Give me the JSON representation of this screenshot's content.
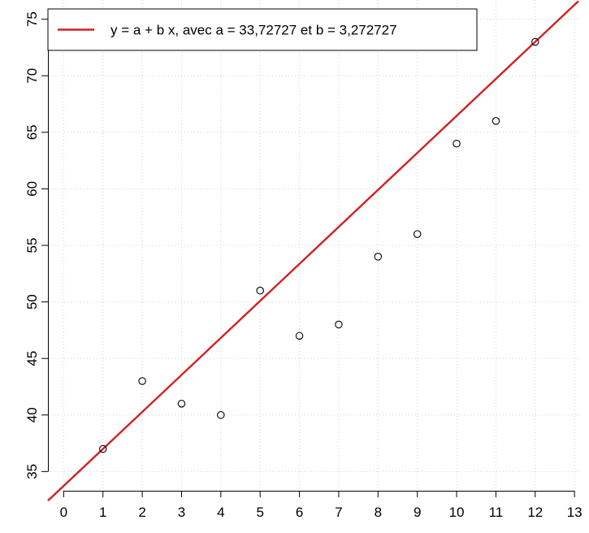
{
  "chart_data": {
    "type": "scatter",
    "title": "",
    "xlabel": "",
    "ylabel": "",
    "xlim": [
      -0.4,
      13.1
    ],
    "ylim": [
      33.3,
      76.7
    ],
    "x_ticks": [
      0,
      1,
      2,
      3,
      4,
      5,
      6,
      7,
      8,
      9,
      10,
      11,
      12,
      13
    ],
    "y_ticks": [
      35,
      40,
      45,
      50,
      55,
      60,
      65,
      70,
      75
    ],
    "grid": true,
    "points": {
      "x": [
        1,
        2,
        3,
        4,
        5,
        6,
        7,
        8,
        9,
        10,
        11,
        12
      ],
      "y": [
        37,
        43,
        41,
        40,
        51,
        47,
        48,
        54,
        56,
        64,
        66,
        73
      ]
    },
    "fit_line": {
      "intercept": 33.72727,
      "slope": 3.272727,
      "color": "#d42020"
    },
    "legend": {
      "position": "top-left",
      "label": "y = a + b x, avec a = 33,72727 et  b = 3,272727"
    }
  }
}
